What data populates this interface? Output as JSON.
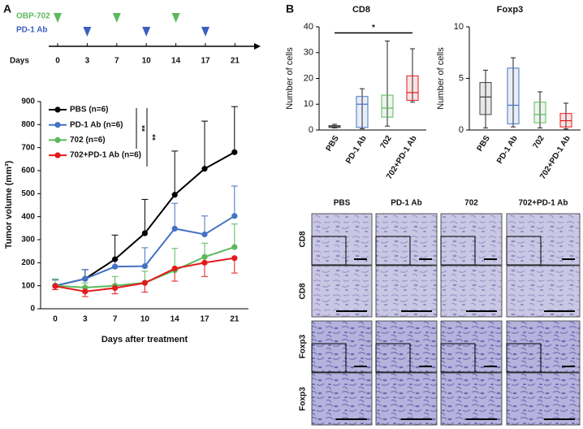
{
  "panel_labels": [
    "A",
    "B"
  ],
  "schedule": {
    "treatments": [
      {
        "name": "OBP-702",
        "color": "#5cb85c",
        "days": [
          0,
          7,
          14
        ]
      },
      {
        "name": "PD-1 Ab",
        "color": "#3b5fc0",
        "days": [
          3,
          10,
          17
        ]
      }
    ],
    "axis_label": "Days",
    "days": [
      "0",
      "3",
      "7",
      "10",
      "14",
      "17",
      "21"
    ]
  },
  "chart_data": [
    {
      "type": "line",
      "categories": [
        "0",
        "3",
        "7",
        "10",
        "14",
        "17",
        "21"
      ],
      "x_label": "Days after treatment",
      "y_label": "Tumor volume (mm³)",
      "ylim": [
        0,
        900
      ],
      "yticks": [
        0,
        100,
        200,
        300,
        400,
        500,
        600,
        700,
        800,
        900
      ],
      "legend": "upper left",
      "annotations": [
        "**",
        "**"
      ],
      "series": [
        {
          "name": "PBS (n=6)",
          "color": "#000000",
          "error_direction": "up",
          "values": [
            100,
            130,
            215,
            328,
            495,
            608,
            680
          ],
          "errors": [
            25,
            40,
            105,
            147,
            190,
            207,
            198
          ]
        },
        {
          "name": "PD-1 Ab (n=6)",
          "color": "#4472c4",
          "error_direction": "up",
          "values": [
            100,
            130,
            183,
            185,
            348,
            323,
            403
          ],
          "errors": [
            25,
            40,
            30,
            80,
            110,
            80,
            130
          ]
        },
        {
          "name": "702 (n=6)",
          "color": "#5cb85c",
          "error_direction": "up",
          "values": [
            100,
            92,
            100,
            113,
            167,
            225,
            268
          ],
          "errors": [
            30,
            20,
            40,
            50,
            95,
            60,
            100
          ]
        },
        {
          "name": "702+PD-1 Ab (n=6)",
          "color": "#e31a1c",
          "error_direction": "down",
          "values": [
            98,
            75,
            90,
            112,
            175,
            200,
            220
          ],
          "errors": [
            15,
            22,
            25,
            40,
            55,
            60,
            65
          ]
        }
      ]
    },
    {
      "type": "box",
      "title": "CD8",
      "y_label": "Number of cells",
      "categories": [
        "PBS",
        "PD-1 Ab",
        "702",
        "702+PD-1 Ab"
      ],
      "colors": [
        "#404040",
        "#4472c4",
        "#5cb85c",
        "#e31a1c"
      ],
      "ylim": [
        0,
        40
      ],
      "yticks": [
        0,
        10,
        20,
        30,
        40
      ],
      "annotations": [
        "*"
      ],
      "min": [
        0.8,
        0.5,
        1.5,
        10.8
      ],
      "q1": [
        1,
        1,
        5,
        11.5
      ],
      "median": [
        1.3,
        10,
        8.5,
        14.5
      ],
      "q3": [
        1.7,
        13,
        13.5,
        21
      ],
      "max": [
        2.2,
        16,
        34.5,
        31.5
      ]
    },
    {
      "type": "box",
      "title": "Foxp3",
      "y_label": "Number of cells",
      "categories": [
        "PBS",
        "PD-1 Ab",
        "702",
        "702+PD-1 Ab"
      ],
      "colors": [
        "#404040",
        "#4472c4",
        "#5cb85c",
        "#e31a1c"
      ],
      "ylim": [
        0,
        10
      ],
      "yticks": [
        0,
        5,
        10
      ],
      "min": [
        0.2,
        0.3,
        0.2,
        0.1
      ],
      "q1": [
        1.5,
        0.6,
        0.7,
        0.3
      ],
      "median": [
        3.2,
        2.4,
        1.5,
        0.9
      ],
      "q3": [
        4.6,
        6.0,
        2.7,
        1.6
      ],
      "max": [
        5.8,
        7.0,
        3.7,
        2.6
      ]
    }
  ],
  "histology": {
    "column_headers": [
      "PBS",
      "PD-1 Ab",
      "702",
      "702+PD-1 Ab"
    ],
    "row_labels": [
      "CD8",
      "CD8",
      "Foxp3",
      "Foxp3"
    ]
  }
}
